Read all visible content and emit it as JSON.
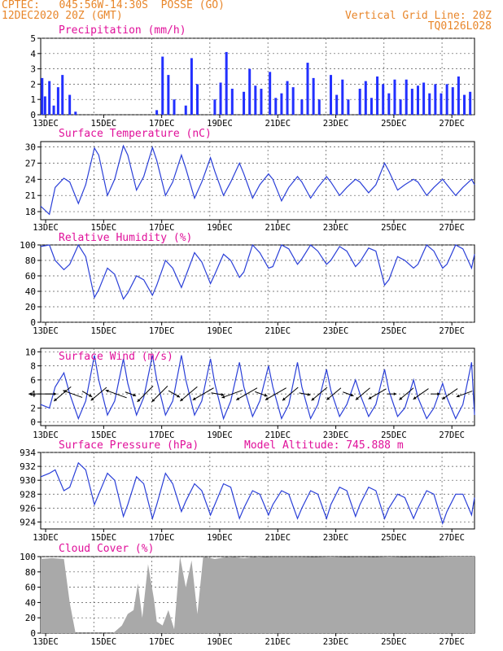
{
  "header": {
    "line1_left": "CPTEC:   045:56W-14:30S  POSSE (GO)",
    "line2_left": "12DEC2020 20Z (GMT)",
    "line2_right": "Vertical Grid Line: 20Z",
    "line3_right": "TQ0126L028"
  },
  "colors": {
    "header": "#e8862a",
    "title": "#e0109a",
    "bars": "#2230ff",
    "line": "#2a3fd8",
    "cloud": "#a9a9a9",
    "arrow": "#000000"
  },
  "x_tick_labels": [
    "13DEC",
    "15DEC",
    "17DEC",
    "19DEC",
    "21DEC",
    "23DEC",
    "25DEC",
    "27DEC"
  ],
  "chart_data": [
    {
      "id": "precip",
      "type": "bar",
      "title": "Precipitation (mm/h)",
      "ylim": [
        0,
        5
      ],
      "yticks": [
        0,
        1,
        2,
        3,
        4,
        5
      ],
      "grid": true,
      "days_from_12DEC_20Z": [
        0.05,
        0.15,
        0.3,
        0.45,
        0.6,
        0.75,
        1.0,
        1.2,
        4.0,
        4.2,
        4.4,
        4.6,
        5.0,
        5.2,
        5.4,
        6.0,
        6.2,
        6.4,
        6.6,
        7.0,
        7.2,
        7.4,
        7.6,
        7.9,
        8.1,
        8.3,
        8.5,
        8.7,
        9.0,
        9.2,
        9.4,
        9.6,
        10.0,
        10.2,
        10.4,
        10.6,
        11.0,
        11.2,
        11.4,
        11.6,
        11.8,
        12.0,
        12.2,
        12.4,
        12.6,
        12.8,
        13.0,
        13.2,
        13.4,
        13.6,
        13.8,
        14.0,
        14.2,
        14.4,
        14.6,
        14.8
      ],
      "values": [
        2.4,
        1.2,
        2.2,
        0.6,
        1.8,
        2.6,
        1.3,
        0.2,
        0.3,
        3.8,
        2.6,
        1.0,
        0.6,
        3.7,
        2.0,
        1.0,
        2.1,
        4.1,
        1.7,
        1.5,
        3.0,
        1.9,
        1.7,
        2.8,
        1.1,
        1.4,
        2.2,
        1.8,
        1.0,
        3.4,
        2.4,
        1.0,
        2.6,
        1.3,
        2.3,
        1.0,
        1.7,
        2.2,
        1.1,
        2.5,
        2.0,
        1.4,
        2.3,
        1.0,
        2.3,
        1.7,
        1.9,
        2.1,
        1.4,
        2.0,
        1.4,
        2.0,
        1.8,
        2.5,
        1.3,
        1.5
      ]
    },
    {
      "id": "temp",
      "type": "line",
      "title": "Surface Temperature (nC)",
      "ylim": [
        16.5,
        31
      ],
      "yticks": [
        18,
        21,
        24,
        27,
        30
      ],
      "grid": true,
      "x": [
        0,
        0.3,
        0.5,
        0.8,
        1.0,
        1.3,
        1.55,
        1.85,
        2.0,
        2.3,
        2.55,
        2.85,
        3.0,
        3.3,
        3.55,
        3.85,
        4.0,
        4.3,
        4.55,
        4.85,
        5.0,
        5.3,
        5.55,
        5.85,
        6.0,
        6.3,
        6.55,
        6.85,
        7.0,
        7.3,
        7.55,
        7.85,
        8.0,
        8.3,
        8.55,
        8.85,
        9.0,
        9.3,
        9.55,
        9.85,
        10.0,
        10.3,
        10.55,
        10.85,
        11.0,
        11.3,
        11.55,
        11.85,
        12.0,
        12.3,
        12.55,
        12.85,
        13.0,
        13.3,
        13.55,
        13.85,
        14.0,
        14.3,
        14.55,
        14.85,
        14.95
      ],
      "values": [
        19.0,
        17.5,
        22.5,
        24.2,
        23.5,
        19.5,
        23.0,
        29.8,
        28.5,
        21.0,
        24.0,
        30.2,
        28.5,
        22.0,
        24.5,
        29.9,
        27.5,
        21.0,
        23.5,
        28.5,
        26.0,
        20.5,
        23.5,
        28.0,
        25.5,
        21.0,
        23.5,
        27.0,
        25.0,
        20.5,
        23.0,
        25.0,
        24.0,
        20.0,
        22.5,
        24.5,
        23.5,
        20.5,
        22.5,
        24.5,
        23.5,
        21.0,
        22.5,
        24.0,
        23.5,
        21.5,
        23.0,
        27.0,
        25.5,
        22.0,
        23.0,
        24.0,
        23.5,
        21.0,
        22.5,
        24.0,
        23.0,
        21.0,
        22.5,
        24.0,
        23.0
      ]
    },
    {
      "id": "rh",
      "type": "line",
      "title": "Relative Humidity (%)",
      "ylim": [
        0,
        100
      ],
      "yticks": [
        0,
        20,
        40,
        60,
        80,
        100
      ],
      "grid": true,
      "x": [
        0,
        0.3,
        0.5,
        0.8,
        1.0,
        1.3,
        1.55,
        1.85,
        2.0,
        2.3,
        2.55,
        2.85,
        3.0,
        3.3,
        3.55,
        3.85,
        4.0,
        4.3,
        4.55,
        4.85,
        5.0,
        5.3,
        5.55,
        5.85,
        6.0,
        6.3,
        6.55,
        6.85,
        7.0,
        7.3,
        7.55,
        7.85,
        8.0,
        8.3,
        8.55,
        8.85,
        9.0,
        9.3,
        9.55,
        9.85,
        10.0,
        10.3,
        10.55,
        10.85,
        11.0,
        11.3,
        11.55,
        11.85,
        12.0,
        12.3,
        12.55,
        12.85,
        13.0,
        13.3,
        13.55,
        13.85,
        14.0,
        14.3,
        14.55,
        14.85,
        14.95
      ],
      "values": [
        98,
        100,
        80,
        68,
        75,
        100,
        85,
        32,
        42,
        70,
        62,
        30,
        38,
        60,
        55,
        35,
        48,
        80,
        70,
        45,
        60,
        90,
        78,
        50,
        62,
        88,
        80,
        58,
        65,
        100,
        90,
        70,
        72,
        100,
        95,
        75,
        82,
        100,
        92,
        75,
        80,
        98,
        92,
        72,
        78,
        96,
        92,
        48,
        55,
        85,
        80,
        70,
        75,
        100,
        92,
        70,
        75,
        100,
        95,
        70,
        88
      ]
    },
    {
      "id": "wind",
      "type": "line",
      "title": "Surface Wind (m/s)",
      "ylim": [
        -0.5,
        10.5
      ],
      "yticks": [
        0,
        2,
        4,
        6,
        8,
        10
      ],
      "grid": true,
      "x": [
        0,
        0.3,
        0.5,
        0.8,
        1.0,
        1.3,
        1.55,
        1.85,
        2.0,
        2.3,
        2.55,
        2.85,
        3.0,
        3.3,
        3.55,
        3.85,
        4.0,
        4.3,
        4.55,
        4.85,
        5.0,
        5.3,
        5.55,
        5.85,
        6.0,
        6.3,
        6.55,
        6.85,
        7.0,
        7.3,
        7.55,
        7.85,
        8.0,
        8.3,
        8.55,
        8.85,
        9.0,
        9.3,
        9.55,
        9.85,
        10.0,
        10.3,
        10.55,
        10.85,
        11.0,
        11.3,
        11.55,
        11.85,
        12.0,
        12.3,
        12.55,
        12.85,
        13.0,
        13.3,
        13.55,
        13.85,
        14.0,
        14.3,
        14.55,
        14.85,
        14.95
      ],
      "values": [
        2.5,
        2.0,
        5.0,
        7.0,
        4.0,
        0.5,
        3.0,
        9.5,
        6.0,
        1.0,
        3.0,
        9.0,
        5.5,
        1.0,
        3.5,
        9.5,
        6.0,
        1.0,
        3.0,
        9.5,
        6.0,
        1.0,
        3.0,
        9.0,
        5.5,
        0.5,
        3.0,
        8.5,
        5.0,
        0.8,
        3.0,
        8.0,
        5.0,
        0.5,
        2.5,
        8.5,
        5.0,
        0.5,
        2.5,
        7.5,
        4.5,
        0.8,
        2.5,
        6.0,
        4.0,
        0.8,
        2.5,
        7.5,
        4.5,
        0.8,
        2.0,
        6.0,
        3.5,
        0.5,
        2.0,
        5.5,
        3.5,
        0.5,
        2.5,
        8.5,
        1.0
      ],
      "barb_days": [
        0.0,
        0.35,
        0.75,
        1.1,
        1.6,
        2.0,
        2.6,
        3.1,
        3.6,
        4.1,
        4.6,
        5.1,
        5.6,
        6.1,
        6.6,
        7.1,
        7.6,
        8.1,
        8.6,
        9.1,
        9.6,
        10.1,
        10.6,
        11.1,
        11.6,
        12.1,
        12.6,
        13.1,
        13.6,
        14.1,
        14.6
      ],
      "barb_speed_ms": [
        5.5,
        2.0,
        5.0,
        4.5,
        2.0,
        4.5,
        5.0,
        2.0,
        5.0,
        5.0,
        2.5,
        5.0,
        5.5,
        2.5,
        5.0,
        5.5,
        2.5,
        5.5,
        4.5,
        2.0,
        4.5,
        4.0,
        2.0,
        4.0,
        4.5,
        1.5,
        4.0,
        4.0,
        1.5,
        4.0,
        3.5
      ],
      "barb_to_deg": [
        270,
        90,
        230,
        290,
        120,
        230,
        290,
        110,
        225,
        225,
        120,
        230,
        240,
        100,
        250,
        240,
        110,
        240,
        230,
        100,
        230,
        230,
        110,
        230,
        240,
        90,
        230,
        235,
        90,
        235,
        250
      ]
    },
    {
      "id": "pressure",
      "type": "line",
      "title": "Surface Pressure (hPa)",
      "annotation": "Model Altitude: 745.888 m",
      "ylim": [
        923,
        934
      ],
      "yticks": [
        924,
        926,
        928,
        930,
        932,
        934
      ],
      "grid": true,
      "x": [
        0,
        0.3,
        0.5,
        0.8,
        1.0,
        1.3,
        1.55,
        1.85,
        2.0,
        2.3,
        2.55,
        2.85,
        3.0,
        3.3,
        3.55,
        3.85,
        4.0,
        4.3,
        4.55,
        4.85,
        5.0,
        5.3,
        5.55,
        5.85,
        6.0,
        6.3,
        6.55,
        6.85,
        7.0,
        7.3,
        7.55,
        7.85,
        8.0,
        8.3,
        8.55,
        8.85,
        9.0,
        9.3,
        9.55,
        9.85,
        10.0,
        10.3,
        10.55,
        10.85,
        11.0,
        11.3,
        11.55,
        11.85,
        12.0,
        12.3,
        12.55,
        12.85,
        13.0,
        13.3,
        13.55,
        13.85,
        14.0,
        14.3,
        14.55,
        14.85,
        14.95
      ],
      "values": [
        930.5,
        931.0,
        931.5,
        928.5,
        929.0,
        932.5,
        931.5,
        926.5,
        928.0,
        931.0,
        930.0,
        924.8,
        926.5,
        930.5,
        929.5,
        924.5,
        926.5,
        931.0,
        929.5,
        925.5,
        927.0,
        929.5,
        928.5,
        925.0,
        926.5,
        929.5,
        929.0,
        924.5,
        926.0,
        928.5,
        928.0,
        925.0,
        926.5,
        928.5,
        928.0,
        924.5,
        926.0,
        928.5,
        928.0,
        924.5,
        926.5,
        929.0,
        928.5,
        924.8,
        926.5,
        929.0,
        928.5,
        924.5,
        926.0,
        928.0,
        927.5,
        924.5,
        926.0,
        928.5,
        928.0,
        923.8,
        925.5,
        928.0,
        928.0,
        925.0,
        927.5
      ]
    },
    {
      "id": "cloud",
      "type": "area",
      "title": "Cloud Cover (%)",
      "ylim": [
        0,
        100
      ],
      "yticks": [
        0,
        20,
        40,
        60,
        80,
        100
      ],
      "grid": true,
      "x": [
        0,
        0.4,
        0.8,
        1.0,
        1.2,
        1.5,
        1.8,
        2.2,
        2.5,
        2.8,
        3.0,
        3.2,
        3.35,
        3.5,
        3.7,
        3.9,
        4.0,
        4.2,
        4.4,
        4.6,
        4.8,
        5.0,
        5.2,
        5.4,
        5.6,
        6.0,
        6.5,
        7.0,
        7.5,
        8.0,
        9.0,
        10.0,
        11.0,
        12.0,
        13.0,
        14.0,
        14.95
      ],
      "values": [
        97,
        98,
        97,
        40,
        0,
        0,
        0,
        0,
        0,
        10,
        25,
        30,
        65,
        20,
        90,
        45,
        15,
        10,
        30,
        5,
        100,
        60,
        95,
        25,
        100,
        97,
        100,
        98,
        100,
        99,
        99,
        100,
        99,
        100,
        99,
        100,
        100
      ]
    }
  ]
}
